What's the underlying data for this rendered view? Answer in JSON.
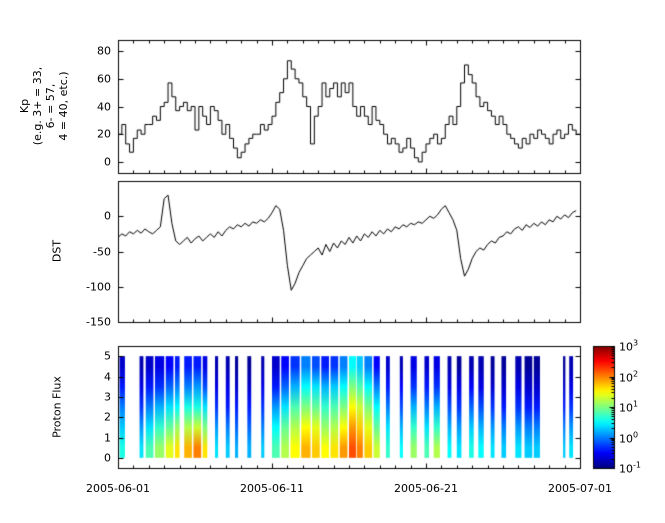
{
  "figure": {
    "background": "#ffffff",
    "x_axis": {
      "tick_labels": [
        "2005-06-01",
        "2005-06-11",
        "2005-06-21",
        "2005-07-01"
      ],
      "tick_days": [
        0,
        10,
        20,
        30
      ],
      "range_days": 30
    }
  },
  "chart_data": [
    {
      "type": "line",
      "style": "step",
      "name": "kp",
      "ylabel_lines": [
        "Kp",
        "(e.g. 3+ = 33,",
        "6- = 57,",
        "4 = 40, etc.)"
      ],
      "ylim": [
        -8,
        88
      ],
      "yticks": [
        80,
        60,
        40,
        20,
        0
      ],
      "sample_interval_days": 0.25,
      "values": [
        20,
        27,
        13,
        7,
        17,
        23,
        20,
        27,
        27,
        33,
        30,
        40,
        43,
        57,
        47,
        37,
        40,
        43,
        37,
        40,
        23,
        40,
        33,
        27,
        40,
        37,
        30,
        20,
        27,
        17,
        10,
        3,
        7,
        13,
        17,
        20,
        20,
        27,
        23,
        27,
        33,
        43,
        50,
        60,
        73,
        67,
        60,
        57,
        47,
        40,
        13,
        33,
        40,
        57,
        47,
        53,
        57,
        47,
        57,
        50,
        57,
        40,
        33,
        40,
        33,
        27,
        40,
        30,
        27,
        20,
        13,
        17,
        13,
        7,
        10,
        17,
        10,
        3,
        0,
        7,
        13,
        17,
        20,
        13,
        17,
        27,
        33,
        27,
        40,
        57,
        70,
        63,
        57,
        47,
        40,
        43,
        37,
        33,
        27,
        33,
        27,
        20,
        17,
        13,
        10,
        17,
        13,
        20,
        17,
        23,
        20,
        17,
        13,
        20,
        23,
        17,
        20,
        27,
        23,
        20
      ]
    },
    {
      "type": "line",
      "name": "dst",
      "ylabel": "DST",
      "ylim": [
        -150,
        50
      ],
      "yticks": [
        0,
        -50,
        -100,
        -150
      ],
      "sample_interval_days": 0.25,
      "values": [
        -30,
        -25,
        -28,
        -22,
        -25,
        -20,
        -24,
        -18,
        -22,
        -25,
        -20,
        -15,
        25,
        30,
        -10,
        -35,
        -40,
        -35,
        -30,
        -38,
        -32,
        -28,
        -35,
        -30,
        -25,
        -30,
        -22,
        -28,
        -20,
        -15,
        -18,
        -12,
        -15,
        -10,
        -14,
        -8,
        -10,
        -5,
        -8,
        -3,
        5,
        15,
        10,
        -20,
        -70,
        -105,
        -95,
        -80,
        -70,
        -60,
        -55,
        -50,
        -45,
        -55,
        -40,
        -50,
        -38,
        -45,
        -35,
        -40,
        -30,
        -38,
        -28,
        -35,
        -25,
        -30,
        -22,
        -28,
        -20,
        -25,
        -18,
        -22,
        -15,
        -18,
        -12,
        -15,
        -10,
        -12,
        -8,
        -10,
        -5,
        0,
        -3,
        2,
        10,
        15,
        5,
        -5,
        -20,
        -60,
        -85,
        -75,
        -60,
        -50,
        -45,
        -48,
        -40,
        -35,
        -38,
        -30,
        -28,
        -22,
        -25,
        -18,
        -15,
        -20,
        -12,
        -16,
        -10,
        -14,
        -8,
        -12,
        -5,
        -8,
        0,
        -4,
        2,
        -2,
        5,
        8
      ]
    },
    {
      "type": "heatmap",
      "name": "proton-flux",
      "ylabel": "Proton Flux",
      "ylim": [
        -0.5,
        5.5
      ],
      "yticks": [
        5,
        4,
        3,
        2,
        1,
        0
      ],
      "colormap": "jet",
      "scale": {
        "type": "log10",
        "min_exponent": -1,
        "max_exponent": 3,
        "colorbar_base": "10",
        "colorbar_tick_exponents": [
          3,
          2,
          1,
          0,
          -1
        ]
      },
      "columns": [
        {
          "d": 0.1,
          "w": 0.35,
          "v": [
            0.6,
            0.3,
            0.0,
            -0.4,
            -0.7
          ]
        },
        {
          "d": 1.4,
          "w": 0.25,
          "v": [
            0.4,
            0.1,
            -0.3,
            -0.6,
            -0.8
          ]
        },
        {
          "d": 1.8,
          "w": 0.5,
          "v": [
            0.8,
            0.4,
            0.0,
            -0.4,
            -0.7
          ]
        },
        {
          "d": 2.4,
          "w": 0.6,
          "v": [
            1.1,
            0.7,
            0.2,
            -0.3,
            -0.6
          ]
        },
        {
          "d": 3.1,
          "w": 0.5,
          "v": [
            1.4,
            0.9,
            0.4,
            -0.1,
            -0.5
          ]
        },
        {
          "d": 3.7,
          "w": 0.3,
          "v": [
            1.6,
            1.1,
            0.5,
            0.0,
            -0.4
          ]
        },
        {
          "d": 4.3,
          "w": 0.5,
          "v": [
            1.8,
            1.2,
            0.6,
            0.0,
            -0.4
          ]
        },
        {
          "d": 4.9,
          "w": 0.5,
          "v": [
            2.0,
            1.3,
            0.6,
            0.1,
            -0.4
          ]
        },
        {
          "d": 5.5,
          "w": 0.3,
          "v": [
            1.6,
            1.0,
            0.4,
            -0.2,
            -0.6
          ]
        },
        {
          "d": 6.3,
          "w": 0.2,
          "v": [
            0.4,
            0.1,
            -0.3,
            -0.6,
            -0.8
          ]
        },
        {
          "d": 7.0,
          "w": 0.25,
          "v": [
            0.3,
            0.0,
            -0.4,
            -0.6,
            -0.8
          ]
        },
        {
          "d": 7.6,
          "w": 0.2,
          "v": [
            0.2,
            -0.1,
            -0.4,
            -0.7,
            -0.9
          ]
        },
        {
          "d": 8.4,
          "w": 0.25,
          "v": [
            0.2,
            -0.1,
            -0.4,
            -0.7,
            -0.9
          ]
        },
        {
          "d": 9.3,
          "w": 0.2,
          "v": [
            0.3,
            0.0,
            -0.3,
            -0.6,
            -0.8
          ]
        },
        {
          "d": 10.0,
          "w": 0.5,
          "v": [
            0.8,
            0.5,
            0.1,
            -0.4,
            -0.7
          ]
        },
        {
          "d": 10.6,
          "w": 0.5,
          "v": [
            1.2,
            0.9,
            0.4,
            -0.1,
            -0.5
          ]
        },
        {
          "d": 11.2,
          "w": 0.6,
          "v": [
            1.5,
            1.2,
            0.8,
            0.2,
            -0.3
          ]
        },
        {
          "d": 11.9,
          "w": 0.6,
          "v": [
            1.8,
            1.5,
            1.0,
            0.5,
            0.0
          ]
        },
        {
          "d": 12.6,
          "w": 0.5,
          "v": [
            1.7,
            1.4,
            0.9,
            0.4,
            -0.2
          ]
        },
        {
          "d": 13.2,
          "w": 0.5,
          "v": [
            1.5,
            1.1,
            0.7,
            0.2,
            -0.4
          ]
        },
        {
          "d": 13.8,
          "w": 0.5,
          "v": [
            1.6,
            1.2,
            0.8,
            0.3,
            -0.3
          ]
        },
        {
          "d": 14.4,
          "w": 0.5,
          "v": [
            1.9,
            1.5,
            1.0,
            0.5,
            0.0
          ]
        },
        {
          "d": 15.0,
          "w": 0.45,
          "v": [
            2.2,
            1.9,
            1.5,
            1.0,
            0.5
          ]
        },
        {
          "d": 15.5,
          "w": 0.4,
          "v": [
            2.0,
            1.7,
            1.3,
            0.8,
            0.3
          ]
        },
        {
          "d": 16.0,
          "w": 0.5,
          "v": [
            1.7,
            1.4,
            1.0,
            0.5,
            0.0
          ]
        },
        {
          "d": 16.6,
          "w": 0.4,
          "v": [
            1.3,
            0.9,
            0.5,
            0.0,
            -0.5
          ]
        },
        {
          "d": 17.4,
          "w": 0.25,
          "v": [
            0.7,
            0.4,
            0.0,
            -0.4,
            -0.7
          ]
        },
        {
          "d": 18.3,
          "w": 0.2,
          "v": [
            0.5,
            0.2,
            -0.2,
            -0.5,
            -0.8
          ]
        },
        {
          "d": 19.0,
          "w": 0.4,
          "v": [
            1.1,
            0.7,
            0.2,
            -0.3,
            -0.6
          ]
        },
        {
          "d": 19.9,
          "w": 0.3,
          "v": [
            0.8,
            0.4,
            0.0,
            -0.4,
            -0.7
          ]
        },
        {
          "d": 20.5,
          "w": 0.4,
          "v": [
            1.2,
            0.7,
            0.2,
            -0.3,
            -0.6
          ]
        },
        {
          "d": 21.4,
          "w": 0.25,
          "v": [
            0.5,
            0.2,
            -0.2,
            -0.6,
            -0.8
          ]
        },
        {
          "d": 22.0,
          "w": 0.3,
          "v": [
            0.4,
            0.1,
            -0.3,
            -0.6,
            -0.9
          ]
        },
        {
          "d": 22.8,
          "w": 0.3,
          "v": [
            0.6,
            0.3,
            -0.1,
            -0.5,
            -0.8
          ]
        },
        {
          "d": 23.4,
          "w": 0.35,
          "v": [
            0.5,
            0.2,
            -0.2,
            -0.6,
            -0.8
          ]
        },
        {
          "d": 24.2,
          "w": 0.25,
          "v": [
            0.4,
            0.1,
            -0.3,
            -0.7,
            -0.9
          ]
        },
        {
          "d": 24.9,
          "w": 0.3,
          "v": [
            0.3,
            0.0,
            -0.4,
            -0.7,
            -0.9
          ]
        },
        {
          "d": 25.8,
          "w": 0.4,
          "v": [
            0.4,
            0.1,
            -0.3,
            -0.6,
            -0.8
          ]
        },
        {
          "d": 26.4,
          "w": 0.5,
          "v": [
            0.3,
            0.0,
            -0.4,
            -0.7,
            -0.9
          ]
        },
        {
          "d": 27.0,
          "w": 0.4,
          "v": [
            0.3,
            0.0,
            -0.4,
            -0.7,
            -0.9
          ]
        },
        {
          "d": 28.9,
          "w": 0.15,
          "v": [
            0.3,
            0.0,
            -0.4,
            -0.7,
            -0.9
          ]
        },
        {
          "d": 29.3,
          "w": 0.25,
          "v": [
            0.4,
            0.1,
            -0.3,
            -0.6,
            -0.8
          ]
        }
      ]
    }
  ]
}
